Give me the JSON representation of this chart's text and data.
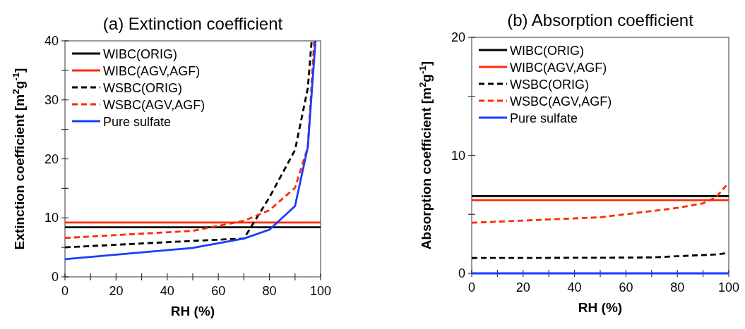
{
  "chart_data": [
    {
      "type": "line",
      "title": "(a) Extinction coefficient",
      "xlabel": "RH (%)",
      "ylabel": "Extinction coefficient [m$^{2}$g$^{-1}$]",
      "xlim": [
        0,
        100
      ],
      "ylim": [
        0,
        40
      ],
      "xticks": [
        0,
        {
          "value": 10,
          "label": null
        },
        20,
        {
          "value": 30,
          "label": null
        },
        40,
        {
          "value": 50,
          "label": null
        },
        60,
        {
          "value": 70,
          "label": null
        },
        80,
        {
          "value": 90,
          "label": null
        },
        100
      ],
      "yticks": [
        0,
        {
          "value": 5,
          "label": null
        },
        10,
        {
          "value": 15,
          "label": null
        },
        20,
        {
          "value": 25,
          "label": null
        },
        30,
        {
          "value": 35,
          "label": null
        },
        40
      ],
      "grid": false,
      "legend": "top left",
      "series": [
        {
          "name": "WIBC(ORIG)",
          "color": "#000000",
          "line_style": "solid",
          "x": [
            0,
            100
          ],
          "values": [
            8.4,
            8.4
          ]
        },
        {
          "name": "WIBC(AGV,AGF)",
          "color": "#ff2a00",
          "line_style": "solid",
          "x": [
            0,
            100
          ],
          "values": [
            9.2,
            9.2
          ]
        },
        {
          "name": "WSBC(ORIG)",
          "color": "#000000",
          "line_style": "dashed",
          "x": [
            0,
            50,
            70,
            80,
            90,
            95,
            96.5
          ],
          "values": [
            5,
            6.1,
            6.5,
            13.5,
            21.5,
            32,
            40
          ]
        },
        {
          "name": "WSBC(AGV,AGF)",
          "color": "#ff2a00",
          "line_style": "dashed",
          "x": [
            0,
            50,
            70,
            80,
            90,
            95,
            97.5
          ],
          "values": [
            6.6,
            7.8,
            9.5,
            11.3,
            15.1,
            22,
            40
          ]
        },
        {
          "name": "Pure sulfate",
          "color": "#1a3cff",
          "line_style": "solid",
          "x": [
            0,
            50,
            70,
            80,
            90,
            95,
            98
          ],
          "values": [
            3,
            4.9,
            6.5,
            8,
            12,
            22,
            40
          ]
        }
      ]
    },
    {
      "type": "line",
      "title": "(b) Absorption coefficient",
      "xlabel": "RH (%)",
      "ylabel": "Absorption coefficient [m$^{2}$g$^{-1}$]",
      "xlim": [
        0,
        100
      ],
      "ylim": [
        0,
        20
      ],
      "xticks": [
        0,
        {
          "value": 10,
          "label": null
        },
        20,
        {
          "value": 30,
          "label": null
        },
        40,
        {
          "value": 50,
          "label": null
        },
        60,
        {
          "value": 70,
          "label": null
        },
        80,
        {
          "value": 90,
          "label": null
        },
        100
      ],
      "yticks": [
        0,
        {
          "value": 5,
          "label": null
        },
        10,
        {
          "value": 15,
          "label": null
        },
        20
      ],
      "grid": false,
      "legend": "top left",
      "series": [
        {
          "name": "WIBC(ORIG)",
          "color": "#000000",
          "line_style": "solid",
          "x": [
            0,
            100
          ],
          "values": [
            6.54,
            6.54
          ]
        },
        {
          "name": "WIBC(AGV,AGF)",
          "color": "#ff2a00",
          "line_style": "solid",
          "x": [
            0,
            100
          ],
          "values": [
            6.2,
            6.2
          ]
        },
        {
          "name": "WSBC(ORIG)",
          "color": "#000000",
          "line_style": "dashed",
          "x": [
            0,
            50,
            70,
            80,
            90,
            95,
            99
          ],
          "values": [
            1.3,
            1.32,
            1.35,
            1.45,
            1.55,
            1.6,
            1.7
          ]
        },
        {
          "name": "WSBC(AGV,AGF)",
          "color": "#ff2a00",
          "line_style": "dashed",
          "x": [
            0,
            50,
            80,
            90,
            95,
            99
          ],
          "values": [
            4.29,
            4.75,
            5.54,
            5.94,
            6.44,
            7.44
          ]
        },
        {
          "name": "Pure sulfate",
          "color": "#1a3cff",
          "line_style": "solid",
          "x": [
            0,
            100
          ],
          "values": [
            0,
            0
          ]
        }
      ]
    }
  ]
}
